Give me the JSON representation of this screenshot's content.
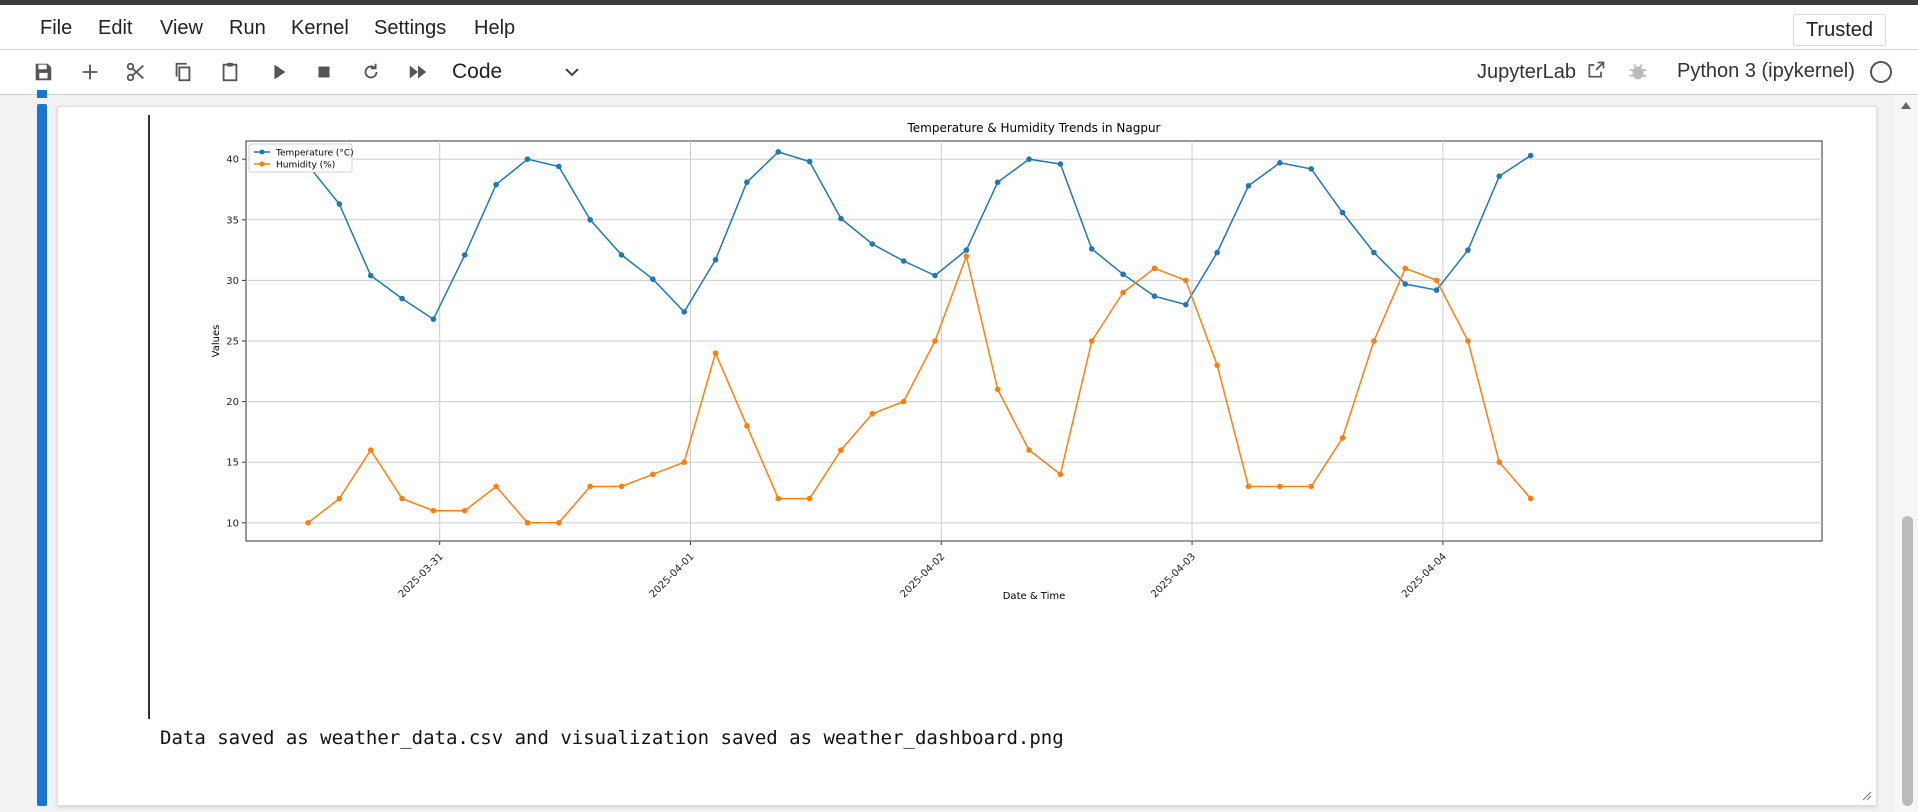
{
  "menubar": {
    "items": [
      "File",
      "Edit",
      "View",
      "Run",
      "Kernel",
      "Settings",
      "Help"
    ],
    "trusted": "Trusted"
  },
  "toolbar": {
    "icons": [
      "save-icon",
      "add-cell-icon",
      "cut-icon",
      "copy-icon",
      "paste-icon",
      "run-icon",
      "stop-icon",
      "restart-icon",
      "run-all-icon"
    ],
    "cell_type": "Code",
    "jupyterlab_label": "JupyterLab",
    "kernel_name": "Python 3 (ipykernel)"
  },
  "output": {
    "stdout": "Data saved as weather_data.csv and visualization saved as weather_dashboard.png"
  },
  "chart_data": {
    "type": "line",
    "title": "Temperature & Humidity Trends in Nagpur",
    "xlabel": "Date & Time",
    "ylabel": "Values",
    "x_tick_labels": [
      "2025-03-31",
      "2025-04-01",
      "2025-04-02",
      "2025-04-03",
      "2025-04-04"
    ],
    "y_ticks": [
      10,
      15,
      20,
      25,
      30,
      35,
      40
    ],
    "ylim": [
      8.5,
      41.5
    ],
    "grid": true,
    "legend_position": "top-left",
    "series": [
      {
        "name": "Temperature (°C)",
        "color": "#1f77b4",
        "values": [
          39.5,
          36.3,
          30.4,
          28.5,
          26.8,
          32.1,
          37.9,
          40.0,
          39.4,
          35.0,
          32.1,
          30.1,
          27.4,
          31.7,
          38.1,
          40.6,
          39.8,
          35.1,
          33.0,
          31.6,
          30.4,
          32.5,
          38.1,
          40.0,
          39.6,
          32.6,
          30.5,
          28.7,
          28.0,
          32.3,
          37.8,
          39.7,
          39.2,
          35.6,
          32.3,
          29.7,
          29.2,
          32.5,
          38.6,
          40.3
        ]
      },
      {
        "name": "Humidity (%)",
        "color": "#ff7f0e",
        "values": [
          10,
          12,
          16,
          12,
          11,
          11,
          13,
          10,
          10,
          13,
          13,
          14,
          15,
          24,
          18,
          12,
          12,
          16,
          19,
          20,
          25,
          32,
          21,
          16,
          14,
          25,
          29,
          31,
          30,
          23,
          13,
          13,
          13,
          17,
          25,
          31,
          30,
          25,
          15,
          12
        ]
      }
    ]
  }
}
